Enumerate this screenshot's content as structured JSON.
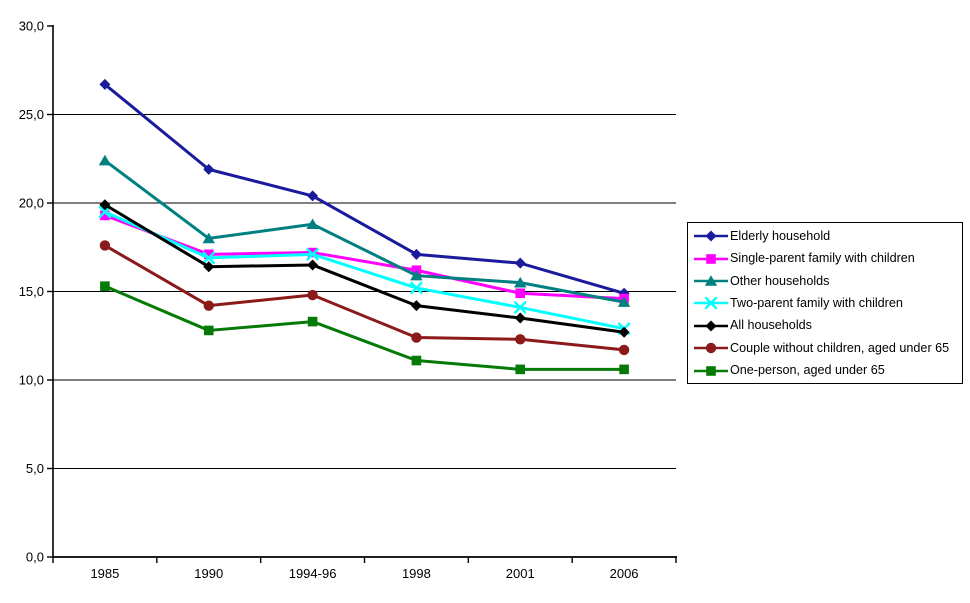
{
  "chart_data": {
    "type": "line",
    "title": "",
    "xlabel": "",
    "ylabel": "",
    "categories": [
      "1985",
      "1990",
      "1994-96",
      "1998",
      "2001",
      "2006"
    ],
    "series": [
      {
        "name": "Elderly household",
        "color": "#1A1A9C",
        "marker": "diamond",
        "values": [
          26.7,
          21.9,
          20.4,
          17.1,
          16.6,
          14.9
        ]
      },
      {
        "name": "Single-parent family with children",
        "color": "#FF00FF",
        "marker": "square",
        "values": [
          19.3,
          17.1,
          17.2,
          16.2,
          14.9,
          14.6
        ]
      },
      {
        "name": "Other households",
        "color": "#008080",
        "marker": "triangle",
        "values": [
          22.4,
          18.0,
          18.8,
          15.9,
          15.5,
          14.4
        ]
      },
      {
        "name": "Two-parent family with children",
        "color": "#00FFFF",
        "marker": "x",
        "values": [
          19.5,
          16.9,
          17.1,
          15.2,
          14.1,
          12.9
        ]
      },
      {
        "name": "All households",
        "color": "#000000",
        "marker": "diamond",
        "values": [
          19.9,
          16.4,
          16.5,
          14.2,
          13.5,
          12.7
        ]
      },
      {
        "name": "Couple without children, aged under 65",
        "color": "#8B1A1A",
        "marker": "circle",
        "values": [
          17.6,
          14.2,
          14.8,
          12.4,
          12.3,
          11.7
        ]
      },
      {
        "name": "One-person, aged under 65",
        "color": "#067A06",
        "marker": "square",
        "values": [
          15.3,
          12.8,
          13.3,
          11.1,
          10.6,
          10.6
        ]
      }
    ],
    "ylim": [
      0,
      30
    ],
    "ytick_step": 5,
    "ytick_labels": [
      "0,0",
      "5,0",
      "10,0",
      "15,0",
      "20,0",
      "25,0",
      "30,0"
    ],
    "grid": true,
    "gridline_values": [
      5,
      10,
      15,
      20,
      25
    ],
    "legend_position": "right",
    "axis_color": "#000000",
    "gridline_color": "#000000",
    "background_color": "#FFFFFF"
  }
}
